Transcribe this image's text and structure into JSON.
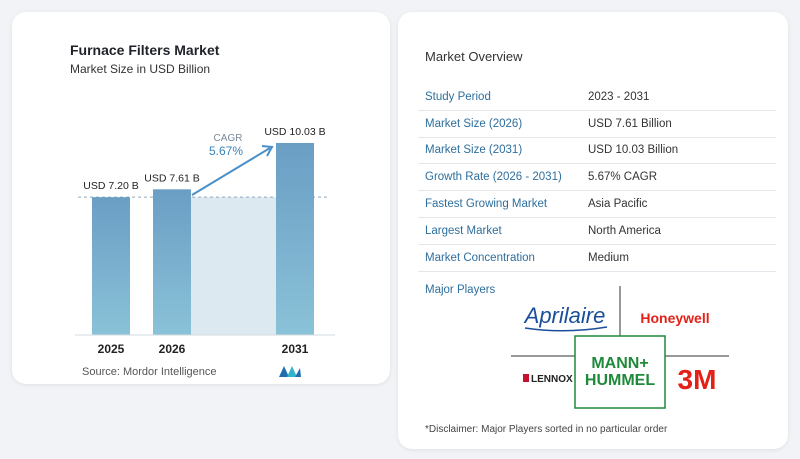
{
  "chart_data": {
    "type": "bar",
    "title": "Furnace Filters Market",
    "subtitle": "Market Size in USD Billion",
    "categories": [
      "2025",
      "2026",
      "2031"
    ],
    "values": [
      7.2,
      7.61,
      10.03
    ],
    "data_labels": [
      "USD 7.20 B",
      "USD 7.61 B",
      "USD 10.03 B"
    ],
    "cagr_label": "CAGR",
    "cagr_value": "5.67%",
    "ylim": [
      0,
      10.03
    ],
    "bar_color": "#6b9ec4",
    "bar_color_light": "#8ac2d8",
    "band_color": "#dde9f1"
  },
  "source": "Source:  Mordor Intelligence",
  "overview": {
    "title": "Market Overview",
    "rows": [
      {
        "key": "Study Period",
        "value": "2023 - 2031"
      },
      {
        "key": "Market Size (2026)",
        "value": "USD 7.61 Billion"
      },
      {
        "key": "Market Size (2031)",
        "value": "USD 10.03 Billion"
      },
      {
        "key": "Growth Rate (2026 - 2031)",
        "value": "5.67% CAGR"
      },
      {
        "key": "Fastest Growing Market",
        "value": "Asia Pacific"
      },
      {
        "key": "Largest Market",
        "value": "North America"
      },
      {
        "key": "Market Concentration",
        "value": "Medium"
      }
    ]
  },
  "players": {
    "title": "Major Players",
    "names": [
      "Aprilaire",
      "Honeywell",
      "LENNOX",
      "MANN+",
      "HUMMEL",
      "3M"
    ]
  },
  "disclaimer": "*Disclaimer: Major Players sorted in no particular order",
  "colors": {
    "accent": "#2e6f9e",
    "honeywell": "#e32118",
    "mann": "#1f8a3a",
    "three_m": "#e32118",
    "aprilaire": "#1a4f9c",
    "lennox": "#c8102e"
  }
}
